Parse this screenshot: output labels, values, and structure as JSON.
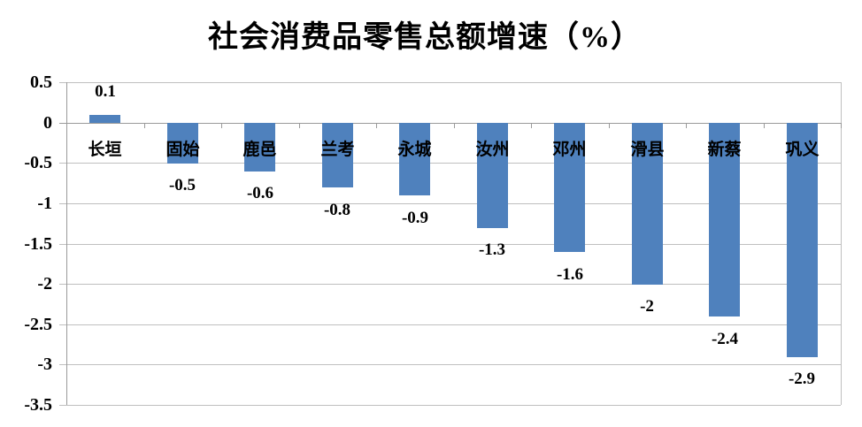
{
  "title": "社会消费品零售总额增速（%）",
  "chart_data": {
    "type": "bar",
    "title": "社会消费品零售总额增速（%）",
    "categories": [
      "长垣",
      "固始",
      "鹿邑",
      "兰考",
      "永城",
      "汝州",
      "邓州",
      "滑县",
      "新蔡",
      "巩义"
    ],
    "values": [
      0.1,
      -0.5,
      -0.6,
      -0.8,
      -0.9,
      -1.3,
      -1.6,
      -2,
      -2.4,
      -2.9
    ],
    "value_labels": [
      "0.1",
      "-0.5",
      "-0.6",
      "-0.8",
      "-0.9",
      "-1.3",
      "-1.6",
      "-2",
      "-2.4",
      "-2.9"
    ],
    "xlabel": "",
    "ylabel": "",
    "ylim": [
      -3.5,
      0.5
    ],
    "ytick_step": 0.5,
    "ytick_labels": [
      "0.5",
      "0",
      "-0.5",
      "-1",
      "-1.5",
      "-2",
      "-2.5",
      "-3",
      "-3.5"
    ],
    "grid": true,
    "legend": false,
    "data_labels": "outside_end",
    "colors": {
      "bar": "#4f81bd",
      "gridline": "#bfbfbf",
      "axis": "#9a9a9a",
      "text": "#000000",
      "background": "#ffffff"
    }
  }
}
